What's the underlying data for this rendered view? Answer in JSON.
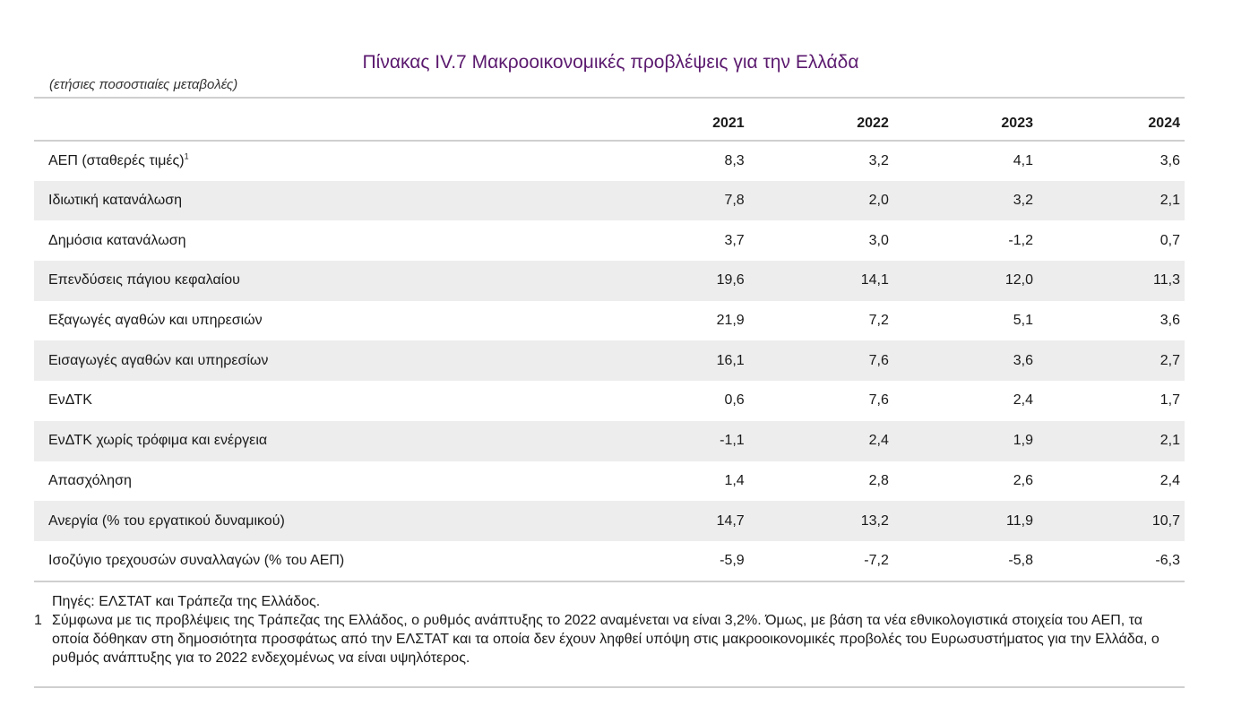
{
  "title": "Πίνακας IV.7 Μακροοικονομικές προβλέψεις για την Ελλάδα",
  "subtitle": "(ετήσιες ποσοστιαίες μεταβολές)",
  "table": {
    "headers": [
      "",
      "2021",
      "2022",
      "2023",
      "2024"
    ],
    "rows": [
      {
        "label": "ΑΕΠ (σταθερές τιμές)",
        "sup": "1",
        "values": [
          "8,3",
          "3,2",
          "4,1",
          "3,6"
        ]
      },
      {
        "label": "Ιδιωτική κατανάλωση",
        "values": [
          "7,8",
          "2,0",
          "3,2",
          "2,1"
        ]
      },
      {
        "label": "Δημόσια κατανάλωση",
        "values": [
          "3,7",
          "3,0",
          "-1,2",
          "0,7"
        ]
      },
      {
        "label": "Επενδύσεις πάγιου κεφαλαίου",
        "values": [
          "19,6",
          "14,1",
          "12,0",
          "11,3"
        ]
      },
      {
        "label": "Εξαγωγές αγαθών και υπηρεσιών",
        "values": [
          "21,9",
          "7,2",
          "5,1",
          "3,6"
        ]
      },
      {
        "label": "Εισαγωγές αγαθών και υπηρεσίων",
        "values": [
          "16,1",
          "7,6",
          "3,6",
          "2,7"
        ]
      },
      {
        "label": "ΕνΔΤΚ",
        "values": [
          "0,6",
          "7,6",
          "2,4",
          "1,7"
        ]
      },
      {
        "label": "ΕνΔΤΚ χωρίς τρόφιμα και ενέργεια",
        "values": [
          "-1,1",
          "2,4",
          "1,9",
          "2,1"
        ]
      },
      {
        "label": "Απασχόληση",
        "values": [
          "1,4",
          "2,8",
          "2,6",
          "2,4"
        ]
      },
      {
        "label": "Ανεργία (% του εργατικού δυναμικού)",
        "values": [
          "14,7",
          "13,2",
          "11,9",
          "10,7"
        ]
      },
      {
        "label": "Ισοζύγιο τρεχουσών συναλλαγών (% του ΑΕΠ)",
        "values": [
          "-5,9",
          "-7,2",
          "-5,8",
          "-6,3"
        ]
      }
    ]
  },
  "notes": {
    "source": "Πηγές: ΕΛΣΤΑΤ και Τράπεζα της Ελλάδος.",
    "footnote_marker": "1",
    "footnote_text": "Σύμφωνα με τις προβλέψεις της Τράπεζας της Ελλάδος, ο ρυθμός ανάπτυξης το 2022 αναμένεται να είναι 3,2%. Όμως, με βάση τα νέα εθνικολογιστικά στοιχεία του ΑΕΠ, τα οποία δόθηκαν στη δημοσιότητα προσφάτως από την ΕΛΣΤΑΤ και τα οποία δεν έχουν ληφθεί υπόψη στις μακροοικονομικές προβολές του Ευρωσυστήματος για την Ελλάδα, ο ρυθμός ανάπτυξης για το 2022 ενδεχομένως να είναι υψηλότερος."
  },
  "colors": {
    "title": "#5b1a6e",
    "row_stripe": "#ededed",
    "rule": "#cfcfcf"
  }
}
